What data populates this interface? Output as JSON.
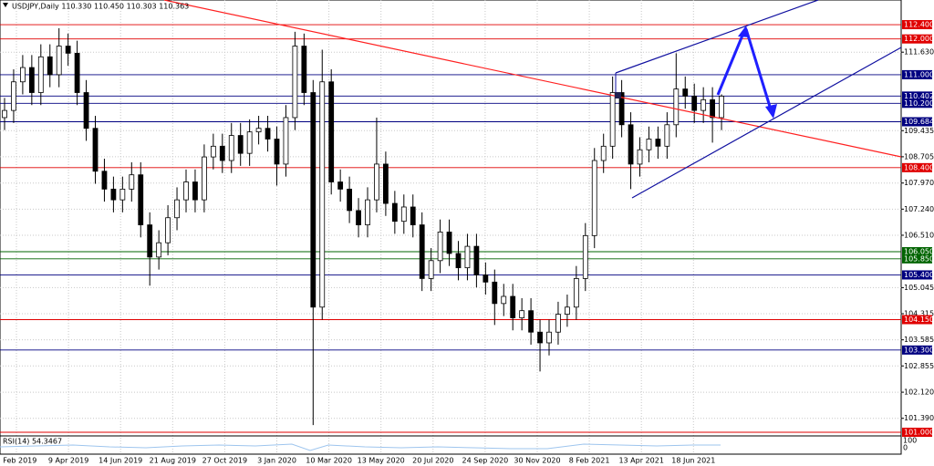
{
  "chart_data": {
    "type": "candlestick",
    "title": "USDJPY,Daily 110.330 110.450 110.303 110.363",
    "indicator": "RSI(14) 54.3467",
    "indicator_ticks": [
      "100",
      "0"
    ],
    "xlabels": [
      "5 Feb 2019",
      "9 Apr 2019",
      "14 Jun 2019",
      "21 Aug 2019",
      "27 Oct 2019",
      "3 Jan 2020",
      "10 Mar 2020",
      "13 May 2020",
      "20 Jul 2020",
      "24 Sep 2020",
      "30 Nov 2020",
      "8 Feb 2021",
      "13 Apr 2021",
      "18 Jun 2021"
    ],
    "ylim": [
      100.898,
      113.089
    ],
    "yticks": [
      {
        "value": 111.63,
        "label": "111.630"
      },
      {
        "value": 109.435,
        "label": "109.435"
      },
      {
        "value": 108.705,
        "label": "108.705"
      },
      {
        "value": 107.97,
        "label": "107.970"
      },
      {
        "value": 107.24,
        "label": "107.240"
      },
      {
        "value": 106.51,
        "label": "106.510"
      },
      {
        "value": 105.045,
        "label": "105.045"
      },
      {
        "value": 104.315,
        "label": "104.315"
      },
      {
        "value": 103.585,
        "label": "103.585"
      },
      {
        "value": 102.855,
        "label": "102.855"
      },
      {
        "value": 102.12,
        "label": "102.120"
      },
      {
        "value": 101.39,
        "label": "101.390"
      }
    ],
    "grid": true,
    "levels": [
      {
        "value": 112.4,
        "label": "112.400",
        "color": "#e00000"
      },
      {
        "value": 112.0,
        "label": "112.000",
        "color": "#e00000"
      },
      {
        "value": 111.0,
        "label": "111.000",
        "color": "#000080"
      },
      {
        "value": 110.402,
        "label": "110.402",
        "color": "#000080"
      },
      {
        "value": 110.2,
        "label": "110.200",
        "color": "#000080"
      },
      {
        "value": 109.684,
        "label": "109.684",
        "color": "#000080"
      },
      {
        "value": 108.4,
        "label": "108.400",
        "color": "#e00000"
      },
      {
        "value": 106.05,
        "label": "106.050",
        "color": "#006400"
      },
      {
        "value": 105.85,
        "label": "105.850",
        "color": "#006400"
      },
      {
        "value": 105.4,
        "label": "105.400",
        "color": "#000080"
      },
      {
        "value": 104.15,
        "label": "104.150",
        "color": "#e00000"
      },
      {
        "value": 103.3,
        "label": "103.300",
        "color": "#000080"
      },
      {
        "value": 101.0,
        "label": "101.000",
        "color": "#e00000"
      }
    ],
    "open": [
      109.8,
      110.0,
      110.8,
      111.2,
      110.5,
      111.5,
      111.0,
      111.8,
      111.6,
      110.5,
      109.5,
      108.3,
      107.8,
      107.5,
      107.8,
      108.2,
      106.8,
      105.9,
      106.3,
      107.0,
      107.5,
      108.0,
      107.5,
      108.7,
      109.0,
      108.6,
      109.3,
      108.8,
      109.4,
      109.5,
      109.2,
      108.5,
      109.8,
      111.8,
      110.5,
      104.5,
      110.8,
      108.0,
      107.8,
      107.2,
      106.8,
      107.5,
      108.5,
      107.4,
      106.9,
      107.3,
      106.8,
      105.3,
      105.8,
      106.6,
      106.0,
      105.6,
      106.2,
      105.4,
      105.2,
      104.6,
      104.8,
      104.2,
      104.4,
      103.8,
      103.5,
      103.8,
      104.3,
      104.5,
      105.3,
      106.5,
      108.6,
      109.0,
      110.5,
      109.6,
      108.5,
      108.9,
      109.2,
      109.0,
      109.6,
      110.6,
      110.4,
      110.0,
      110.3,
      109.8
    ],
    "high": [
      110.35,
      111.15,
      111.55,
      111.55,
      111.85,
      111.85,
      112.3,
      112.15,
      111.95,
      110.85,
      109.85,
      108.65,
      108.15,
      108.15,
      108.55,
      108.55,
      107.15,
      106.65,
      107.35,
      107.85,
      108.35,
      108.35,
      109.05,
      109.35,
      109.35,
      109.65,
      109.65,
      109.75,
      109.85,
      109.85,
      109.55,
      110.15,
      112.2,
      112.15,
      110.85,
      111.7,
      111.15,
      108.35,
      108.15,
      107.55,
      107.85,
      109.8,
      108.85,
      107.75,
      107.65,
      107.65,
      107.15,
      106.15,
      106.95,
      106.95,
      106.35,
      106.55,
      106.55,
      105.75,
      105.55,
      105.15,
      105.15,
      104.75,
      104.75,
      104.15,
      104.15,
      104.65,
      104.85,
      105.65,
      106.85,
      108.95,
      109.35,
      110.95,
      110.85,
      109.95,
      109.25,
      109.55,
      109.55,
      109.95,
      111.6,
      110.95,
      110.75,
      110.65,
      110.65,
      110.45
    ],
    "low": [
      109.45,
      109.65,
      110.45,
      110.15,
      110.15,
      110.65,
      110.65,
      111.25,
      110.15,
      109.15,
      107.95,
      107.45,
      107.15,
      107.15,
      107.45,
      106.45,
      105.1,
      105.55,
      105.95,
      106.65,
      107.15,
      107.15,
      107.15,
      108.35,
      108.25,
      108.25,
      108.45,
      108.45,
      109.05,
      108.85,
      107.9,
      108.15,
      109.45,
      110.15,
      101.2,
      104.15,
      107.65,
      107.45,
      106.85,
      106.45,
      106.45,
      107.15,
      107.05,
      106.55,
      106.55,
      106.45,
      104.95,
      104.95,
      105.45,
      105.65,
      105.25,
      105.25,
      105.05,
      104.85,
      104.0,
      104.25,
      103.85,
      103.85,
      103.45,
      102.7,
      103.15,
      103.45,
      103.95,
      104.15,
      104.95,
      106.15,
      108.25,
      108.65,
      109.25,
      107.8,
      108.15,
      108.55,
      108.65,
      108.65,
      109.25,
      110.05,
      109.65,
      109.65,
      109.1,
      109.45
    ],
    "close": [
      110.0,
      110.8,
      111.2,
      110.5,
      111.5,
      111.0,
      111.8,
      111.6,
      110.5,
      109.5,
      108.3,
      107.8,
      107.5,
      107.8,
      108.2,
      106.8,
      105.9,
      106.3,
      107.0,
      107.5,
      108.0,
      107.5,
      108.7,
      109.0,
      108.6,
      109.3,
      108.8,
      109.4,
      109.5,
      109.2,
      108.5,
      109.8,
      111.8,
      110.5,
      104.5,
      110.8,
      108.0,
      107.8,
      107.2,
      106.8,
      107.5,
      108.5,
      107.4,
      106.9,
      107.3,
      106.8,
      105.3,
      105.8,
      106.6,
      106.0,
      105.6,
      106.2,
      105.4,
      105.2,
      104.6,
      104.8,
      104.2,
      104.4,
      103.8,
      103.5,
      103.8,
      104.3,
      104.5,
      105.3,
      106.5,
      108.6,
      109.0,
      110.5,
      109.6,
      108.5,
      108.9,
      109.2,
      109.0,
      109.6,
      110.6,
      110.4,
      110.0,
      110.3,
      109.8,
      110.4
    ]
  }
}
